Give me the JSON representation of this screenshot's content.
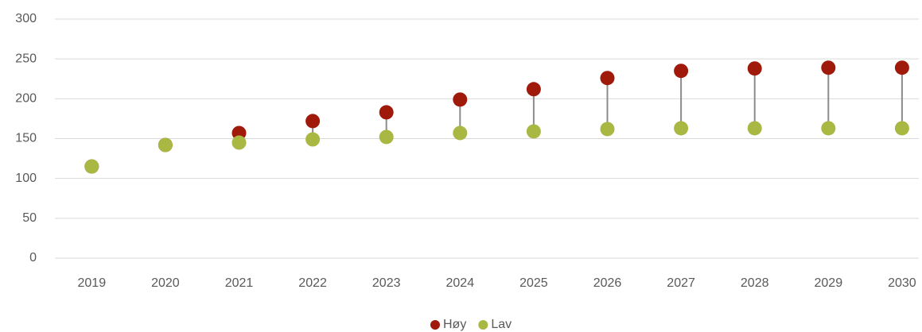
{
  "chart_data": {
    "type": "dumbbell",
    "categories": [
      "2019",
      "2020",
      "2021",
      "2022",
      "2023",
      "2024",
      "2025",
      "2026",
      "2027",
      "2028",
      "2029",
      "2030"
    ],
    "series": [
      {
        "name": "Høy",
        "color": "#a01a0c",
        "values": [
          115,
          142,
          157,
          172,
          183,
          199,
          212,
          226,
          235,
          238,
          239,
          239
        ]
      },
      {
        "name": "Lav",
        "color": "#a9b843",
        "values": [
          115,
          142,
          145,
          149,
          152,
          157,
          159,
          162,
          163,
          163,
          163,
          163
        ]
      }
    ],
    "ylim": [
      0,
      300
    ],
    "yticks": [
      0,
      50,
      100,
      150,
      200,
      250,
      300
    ],
    "grid": true,
    "legend": "bottom"
  }
}
